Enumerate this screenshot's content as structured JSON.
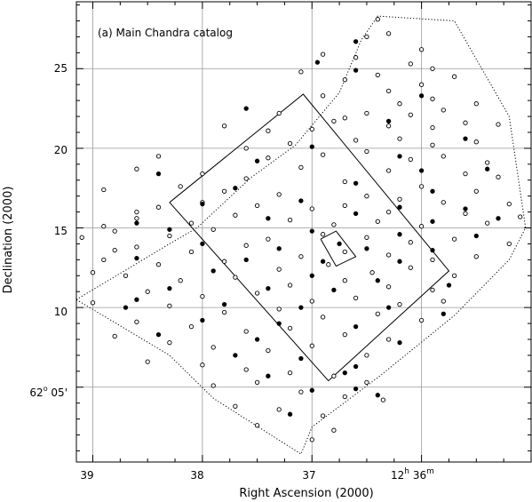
{
  "chart_data": {
    "type": "scatter",
    "title": "(a) Main Chandra catalog",
    "xlabel": "Right Ascension (2000)",
    "ylabel": "Declination (2000)",
    "xlim_min": [
      39.15,
      35.0
    ],
    "ylim_arcmin": [
      0.3,
      29.2
    ],
    "x_ticks": [
      {
        "value": 39,
        "label": "39"
      },
      {
        "value": 38,
        "label": "38"
      },
      {
        "value": 37,
        "label": "37"
      },
      {
        "value": 36,
        "label": "12h 36m"
      }
    ],
    "x_tick_sup": {
      "value": 36,
      "base": "12",
      "hour_unit": "h",
      "middle": " 36",
      "minute_unit": "m"
    },
    "y_ticks": [
      {
        "value": 5,
        "label": "62° 05'"
      },
      {
        "value": 10,
        "label": "10"
      },
      {
        "value": 15,
        "label": "15"
      },
      {
        "value": 20,
        "label": "20"
      },
      {
        "value": 25,
        "label": "25"
      }
    ],
    "y_tick_sup": {
      "value": 5,
      "deg": "62",
      "deg_unit": "o",
      "rest": " 05'"
    },
    "grid": true,
    "outer_boundary": [
      [
        39.15,
        10.5
      ],
      [
        38.3,
        14.0
      ],
      [
        38.05,
        15.0
      ],
      [
        37.55,
        18.2
      ],
      [
        37.15,
        20.2
      ],
      [
        36.75,
        23.5
      ],
      [
        36.55,
        26.8
      ],
      [
        36.4,
        28.3
      ],
      [
        35.7,
        28.0
      ],
      [
        35.2,
        22.0
      ],
      [
        35.05,
        15.0
      ],
      [
        35.2,
        13.0
      ],
      [
        35.7,
        9.5
      ],
      [
        36.4,
        5.6
      ],
      [
        37.0,
        2.5
      ],
      [
        37.1,
        0.8
      ],
      [
        37.9,
        4.3
      ],
      [
        38.3,
        7.0
      ],
      [
        39.15,
        10.5
      ]
    ],
    "inner_square": [
      [
        38.3,
        16.6
      ],
      [
        37.08,
        23.4
      ],
      [
        35.75,
        12.3
      ],
      [
        36.85,
        5.4
      ],
      [
        38.3,
        16.6
      ]
    ],
    "small_square": [
      [
        36.92,
        14.3
      ],
      [
        36.78,
        14.8
      ],
      [
        36.6,
        13.2
      ],
      [
        36.78,
        12.6
      ],
      [
        36.92,
        14.3
      ]
    ],
    "series": [
      {
        "name": "",
        "marker": "open",
        "points": [
          [
            36.4,
            28.1
          ],
          [
            36.5,
            27.0
          ],
          [
            36.3,
            27.2
          ],
          [
            36.0,
            26.2
          ],
          [
            36.9,
            25.9
          ],
          [
            36.6,
            25.7
          ],
          [
            36.1,
            25.3
          ],
          [
            36.7,
            24.3
          ],
          [
            36.4,
            24.6
          ],
          [
            36.0,
            24.0
          ],
          [
            35.7,
            24.5
          ],
          [
            36.9,
            23.3
          ],
          [
            36.2,
            22.8
          ],
          [
            35.9,
            23.1
          ],
          [
            37.3,
            22.2
          ],
          [
            36.5,
            22.2
          ],
          [
            36.1,
            22.1
          ],
          [
            35.8,
            22.4
          ],
          [
            36.8,
            21.7
          ],
          [
            36.7,
            21.9
          ],
          [
            36.3,
            21.4
          ],
          [
            35.9,
            21.3
          ],
          [
            35.6,
            21.6
          ],
          [
            37.8,
            21.4
          ],
          [
            37.4,
            21.1
          ],
          [
            37.0,
            21.2
          ],
          [
            36.6,
            20.5
          ],
          [
            36.2,
            20.6
          ],
          [
            35.9,
            20.2
          ],
          [
            35.5,
            20.4
          ],
          [
            37.6,
            20.0
          ],
          [
            37.2,
            20.3
          ],
          [
            36.9,
            19.6
          ],
          [
            36.5,
            19.8
          ],
          [
            36.1,
            19.3
          ],
          [
            35.8,
            19.5
          ],
          [
            35.4,
            19.1
          ],
          [
            38.4,
            19.5
          ],
          [
            37.4,
            19.4
          ],
          [
            37.1,
            18.8
          ],
          [
            36.3,
            18.6
          ],
          [
            35.6,
            18.4
          ],
          [
            35.3,
            18.2
          ],
          [
            38.6,
            18.7
          ],
          [
            38.0,
            18.4
          ],
          [
            37.6,
            18.1
          ],
          [
            36.7,
            17.9
          ],
          [
            36.0,
            17.6
          ],
          [
            35.5,
            17.3
          ],
          [
            38.9,
            17.4
          ],
          [
            38.2,
            17.6
          ],
          [
            37.8,
            17.3
          ],
          [
            37.3,
            17.1
          ],
          [
            36.5,
            17.0
          ],
          [
            36.2,
            16.8
          ],
          [
            35.8,
            16.6
          ],
          [
            35.2,
            16.5
          ],
          [
            38.4,
            16.3
          ],
          [
            38.0,
            16.6
          ],
          [
            37.5,
            16.4
          ],
          [
            37.0,
            16.2
          ],
          [
            36.7,
            16.4
          ],
          [
            36.3,
            16.0
          ],
          [
            35.6,
            15.9
          ],
          [
            35.1,
            15.7
          ],
          [
            38.6,
            15.6
          ],
          [
            38.1,
            15.3
          ],
          [
            37.7,
            15.8
          ],
          [
            37.2,
            15.5
          ],
          [
            36.8,
            15.2
          ],
          [
            36.4,
            15.4
          ],
          [
            36.0,
            15.1
          ],
          [
            35.4,
            15.3
          ],
          [
            38.8,
            14.8
          ],
          [
            38.3,
            14.5
          ],
          [
            37.9,
            14.9
          ],
          [
            37.4,
            14.3
          ],
          [
            36.9,
            14.6
          ],
          [
            36.5,
            14.4
          ],
          [
            36.1,
            14.1
          ],
          [
            35.7,
            14.3
          ],
          [
            35.2,
            14.0
          ],
          [
            38.6,
            13.8
          ],
          [
            38.1,
            13.5
          ],
          [
            37.6,
            13.9
          ],
          [
            37.1,
            13.2
          ],
          [
            36.7,
            13.5
          ],
          [
            36.3,
            13.3
          ],
          [
            35.9,
            13.0
          ],
          [
            35.5,
            13.2
          ],
          [
            38.9,
            13.0
          ],
          [
            38.4,
            12.7
          ],
          [
            37.8,
            12.9
          ],
          [
            37.3,
            12.4
          ],
          [
            36.85,
            12.7
          ],
          [
            36.45,
            12.2
          ],
          [
            36.1,
            12.5
          ],
          [
            35.7,
            12.0
          ],
          [
            38.7,
            12.0
          ],
          [
            38.2,
            11.7
          ],
          [
            37.7,
            11.9
          ],
          [
            37.2,
            11.4
          ],
          [
            36.7,
            11.7
          ],
          [
            36.3,
            11.3
          ],
          [
            35.9,
            11.1
          ],
          [
            38.5,
            11.0
          ],
          [
            38.0,
            10.7
          ],
          [
            37.5,
            10.9
          ],
          [
            37.0,
            10.4
          ],
          [
            36.6,
            10.6
          ],
          [
            36.2,
            10.2
          ],
          [
            35.8,
            10.4
          ],
          [
            39.0,
            10.3
          ],
          [
            38.3,
            10.1
          ],
          [
            37.8,
            9.7
          ],
          [
            37.3,
            9.9
          ],
          [
            36.9,
            9.4
          ],
          [
            36.4,
            9.6
          ],
          [
            36.0,
            9.2
          ],
          [
            38.6,
            9.1
          ],
          [
            38.1,
            8.8
          ],
          [
            37.6,
            8.5
          ],
          [
            37.2,
            8.7
          ],
          [
            36.7,
            8.3
          ],
          [
            36.3,
            8.0
          ],
          [
            38.8,
            8.2
          ],
          [
            38.3,
            7.8
          ],
          [
            37.9,
            7.5
          ],
          [
            37.4,
            7.3
          ],
          [
            37.0,
            7.6
          ],
          [
            36.5,
            7.0
          ],
          [
            38.5,
            6.6
          ],
          [
            38.0,
            6.4
          ],
          [
            37.6,
            6.1
          ],
          [
            37.2,
            5.9
          ],
          [
            36.8,
            5.7
          ],
          [
            36.5,
            5.3
          ],
          [
            37.9,
            5.1
          ],
          [
            37.5,
            5.3
          ],
          [
            37.1,
            4.7
          ],
          [
            36.7,
            4.4
          ],
          [
            36.35,
            4.2
          ],
          [
            37.7,
            3.8
          ],
          [
            37.3,
            3.6
          ],
          [
            36.9,
            3.2
          ],
          [
            37.5,
            2.6
          ],
          [
            37.0,
            1.7
          ],
          [
            36.8,
            2.3
          ],
          [
            38.6,
            16.0
          ],
          [
            38.9,
            15.1
          ],
          [
            39.1,
            14.4
          ],
          [
            38.8,
            13.6
          ],
          [
            39.0,
            12.2
          ],
          [
            35.3,
            21.5
          ],
          [
            35.5,
            22.8
          ],
          [
            35.9,
            25.0
          ],
          [
            36.3,
            23.6
          ],
          [
            37.1,
            24.8
          ]
        ]
      },
      {
        "name": "",
        "marker": "filled",
        "points": [
          [
            36.6,
            26.7
          ],
          [
            36.95,
            25.4
          ],
          [
            36.6,
            24.9
          ],
          [
            36.0,
            23.3
          ],
          [
            37.6,
            22.5
          ],
          [
            36.3,
            21.7
          ],
          [
            35.6,
            20.6
          ],
          [
            37.0,
            20.1
          ],
          [
            36.2,
            19.5
          ],
          [
            37.5,
            19.2
          ],
          [
            38.4,
            18.4
          ],
          [
            36.0,
            18.6
          ],
          [
            35.4,
            18.7
          ],
          [
            37.7,
            17.5
          ],
          [
            36.6,
            17.8
          ],
          [
            35.9,
            17.3
          ],
          [
            38.0,
            16.5
          ],
          [
            37.1,
            16.7
          ],
          [
            36.2,
            16.3
          ],
          [
            35.6,
            16.2
          ],
          [
            38.6,
            15.3
          ],
          [
            37.4,
            15.6
          ],
          [
            36.6,
            15.9
          ],
          [
            35.9,
            15.4
          ],
          [
            35.3,
            15.6
          ],
          [
            38.3,
            14.9
          ],
          [
            37.0,
            14.8
          ],
          [
            36.75,
            14.0
          ],
          [
            36.2,
            14.6
          ],
          [
            35.5,
            14.5
          ],
          [
            38.0,
            14.0
          ],
          [
            37.3,
            13.7
          ],
          [
            36.5,
            13.7
          ],
          [
            35.9,
            13.6
          ],
          [
            38.6,
            13.1
          ],
          [
            37.6,
            13.0
          ],
          [
            36.9,
            12.9
          ],
          [
            36.2,
            12.9
          ],
          [
            37.9,
            12.3
          ],
          [
            37.0,
            12.0
          ],
          [
            36.4,
            11.7
          ],
          [
            38.3,
            11.2
          ],
          [
            37.4,
            11.2
          ],
          [
            36.8,
            11.1
          ],
          [
            35.75,
            11.4
          ],
          [
            38.6,
            10.5
          ],
          [
            37.8,
            10.2
          ],
          [
            37.1,
            10.0
          ],
          [
            36.3,
            10.0
          ],
          [
            35.8,
            9.6
          ],
          [
            38.0,
            9.2
          ],
          [
            37.3,
            9.0
          ],
          [
            36.6,
            8.8
          ],
          [
            38.4,
            8.3
          ],
          [
            37.5,
            8.0
          ],
          [
            36.2,
            7.8
          ],
          [
            37.7,
            7.0
          ],
          [
            37.1,
            6.8
          ],
          [
            36.6,
            6.3
          ],
          [
            37.4,
            5.7
          ],
          [
            36.7,
            5.9
          ],
          [
            37.0,
            4.8
          ],
          [
            36.6,
            4.9
          ],
          [
            36.4,
            4.5
          ],
          [
            37.2,
            3.3
          ],
          [
            38.7,
            10.0
          ]
        ]
      }
    ]
  }
}
